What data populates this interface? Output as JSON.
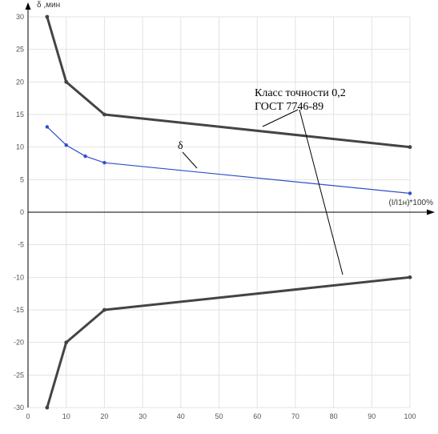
{
  "chart_data": {
    "type": "line",
    "ylabel": "δ ,мин",
    "xlabel": "(I/I1н)*100%",
    "xlim": [
      0,
      100
    ],
    "ylim": [
      -30,
      30
    ],
    "xticks": [
      0,
      10,
      20,
      30,
      40,
      50,
      60,
      70,
      80,
      90,
      100
    ],
    "yticks": [
      30,
      25,
      20,
      15,
      10,
      5,
      0,
      -5,
      -10,
      -15,
      -20,
      -25,
      -30
    ],
    "grid": true,
    "colors": {
      "limit": "#444444",
      "delta": "#2f4fc9",
      "grid": "#e3e3e3",
      "axis": "#000000"
    },
    "series": [
      {
        "name": "Класс точности 0,2 ГОСТ 7746-89",
        "role": "upper-limit",
        "x": [
          5,
          10,
          20,
          100
        ],
        "y": [
          30,
          20,
          15,
          10
        ]
      },
      {
        "name": "Класс точности 0,2 ГОСТ 7746-89",
        "role": "lower-limit",
        "x": [
          5,
          10,
          20,
          100
        ],
        "y": [
          -30,
          -20,
          -15,
          -10
        ]
      },
      {
        "name": "δ",
        "role": "delta",
        "x": [
          5,
          10,
          15,
          20,
          100
        ],
        "y": [
          13.1,
          10.3,
          8.6,
          7.6,
          2.9
        ]
      }
    ],
    "annotations": {
      "class_line1": "Класс точности 0,2",
      "class_line2": "ГОСТ 7746-89",
      "delta_label": "δ"
    }
  }
}
